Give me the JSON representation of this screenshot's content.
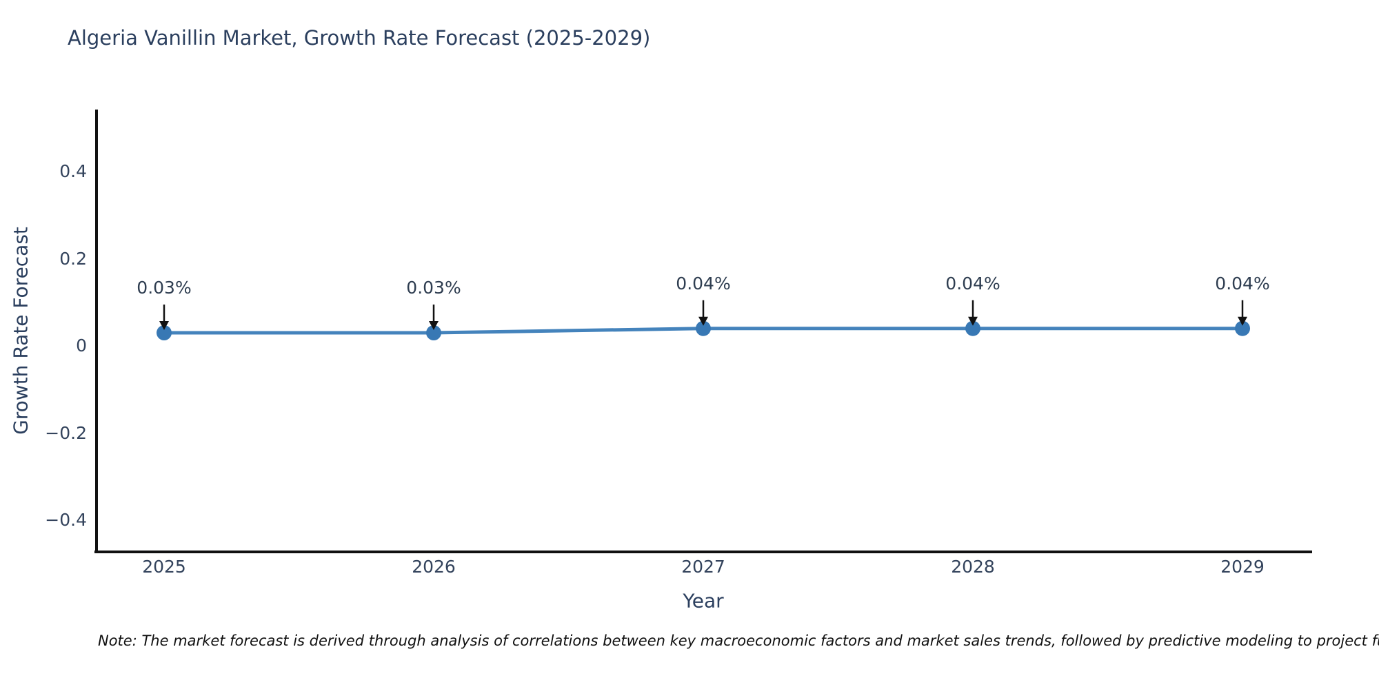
{
  "chart_data": {
    "type": "line",
    "title": "Algeria Vanillin Market, Growth Rate Forecast (2025-2029)",
    "xlabel": "Year",
    "ylabel": "Growth Rate Forecast",
    "x": [
      2025,
      2026,
      2027,
      2028,
      2029
    ],
    "x_tick_labels": [
      "2025",
      "2026",
      "2027",
      "2028",
      "2029"
    ],
    "series": [
      {
        "name": "Growth Rate Forecast",
        "values": [
          0.03,
          0.03,
          0.04,
          0.04,
          0.04
        ]
      }
    ],
    "point_annotations": [
      "0.03%",
      "0.03%",
      "0.04%",
      "0.04%",
      "0.04%"
    ],
    "yticks": [
      0.4,
      0.2,
      0,
      -0.2,
      -0.4
    ],
    "ytick_labels": [
      "0.4",
      "0.2",
      "0",
      "−0.2",
      "−0.4"
    ],
    "ylim": [
      -0.48,
      0.54
    ],
    "xlim": [
      2024.75,
      2029.25
    ],
    "grid": false,
    "legend": "none",
    "line_color": "#4483bc",
    "marker_color": "#3878b4",
    "axis_color": "#111111",
    "text_color": "#2b3f5e"
  },
  "note": {
    "text": "Note: The market forecast is derived through analysis of correlations between key macroeconomic factors and market sales trends, followed by predictive modeling to project future sa"
  }
}
